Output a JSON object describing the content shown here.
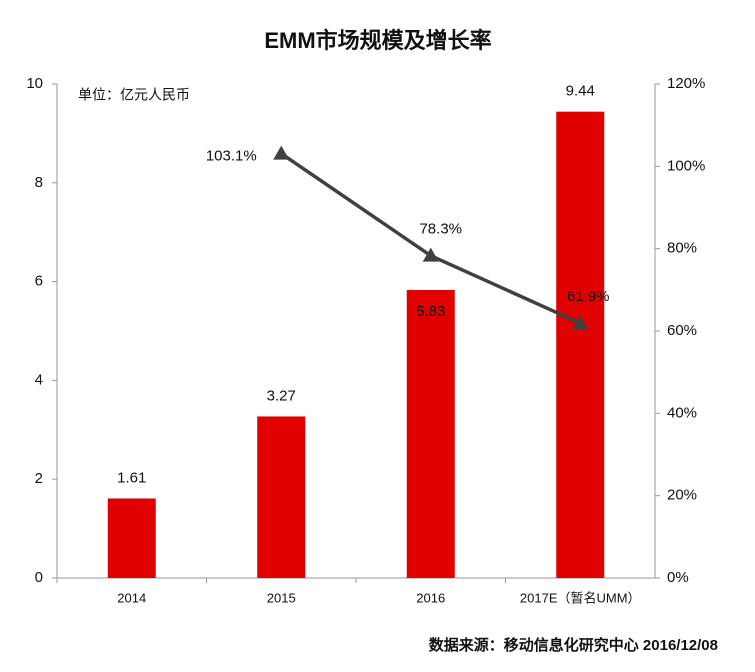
{
  "chart_data": {
    "type": "bar",
    "title": "EMM市场规模及增长率",
    "unit_label": "单位：亿元人民币",
    "source": "数据来源：移动信息化研究中心 2016/12/08",
    "categories": [
      "2014",
      "2015",
      "2016",
      "2017E（暂名UMM）"
    ],
    "series": [
      {
        "type": "bar",
        "color": "#e00000",
        "values": [
          1.61,
          3.27,
          5.83,
          9.44
        ]
      },
      {
        "type": "line",
        "axis": "y2",
        "color": "#404040",
        "values": [
          null,
          103.1,
          78.3,
          61.9
        ],
        "value_labels": [
          null,
          "103.1%",
          "78.3%",
          "61.9%"
        ]
      }
    ],
    "ylim": [
      0,
      10
    ],
    "yticks": [
      0,
      2,
      4,
      6,
      8,
      10
    ],
    "y2lim": [
      0,
      120
    ],
    "y2ticks": [
      {
        "value": 0,
        "label": "0%"
      },
      {
        "value": 20,
        "label": "20%"
      },
      {
        "value": 40,
        "label": "40%"
      },
      {
        "value": 60,
        "label": "60%"
      },
      {
        "value": 80,
        "label": "80%"
      },
      {
        "value": 100,
        "label": "100%"
      },
      {
        "value": 120,
        "label": "120%"
      }
    ],
    "grid": false
  }
}
